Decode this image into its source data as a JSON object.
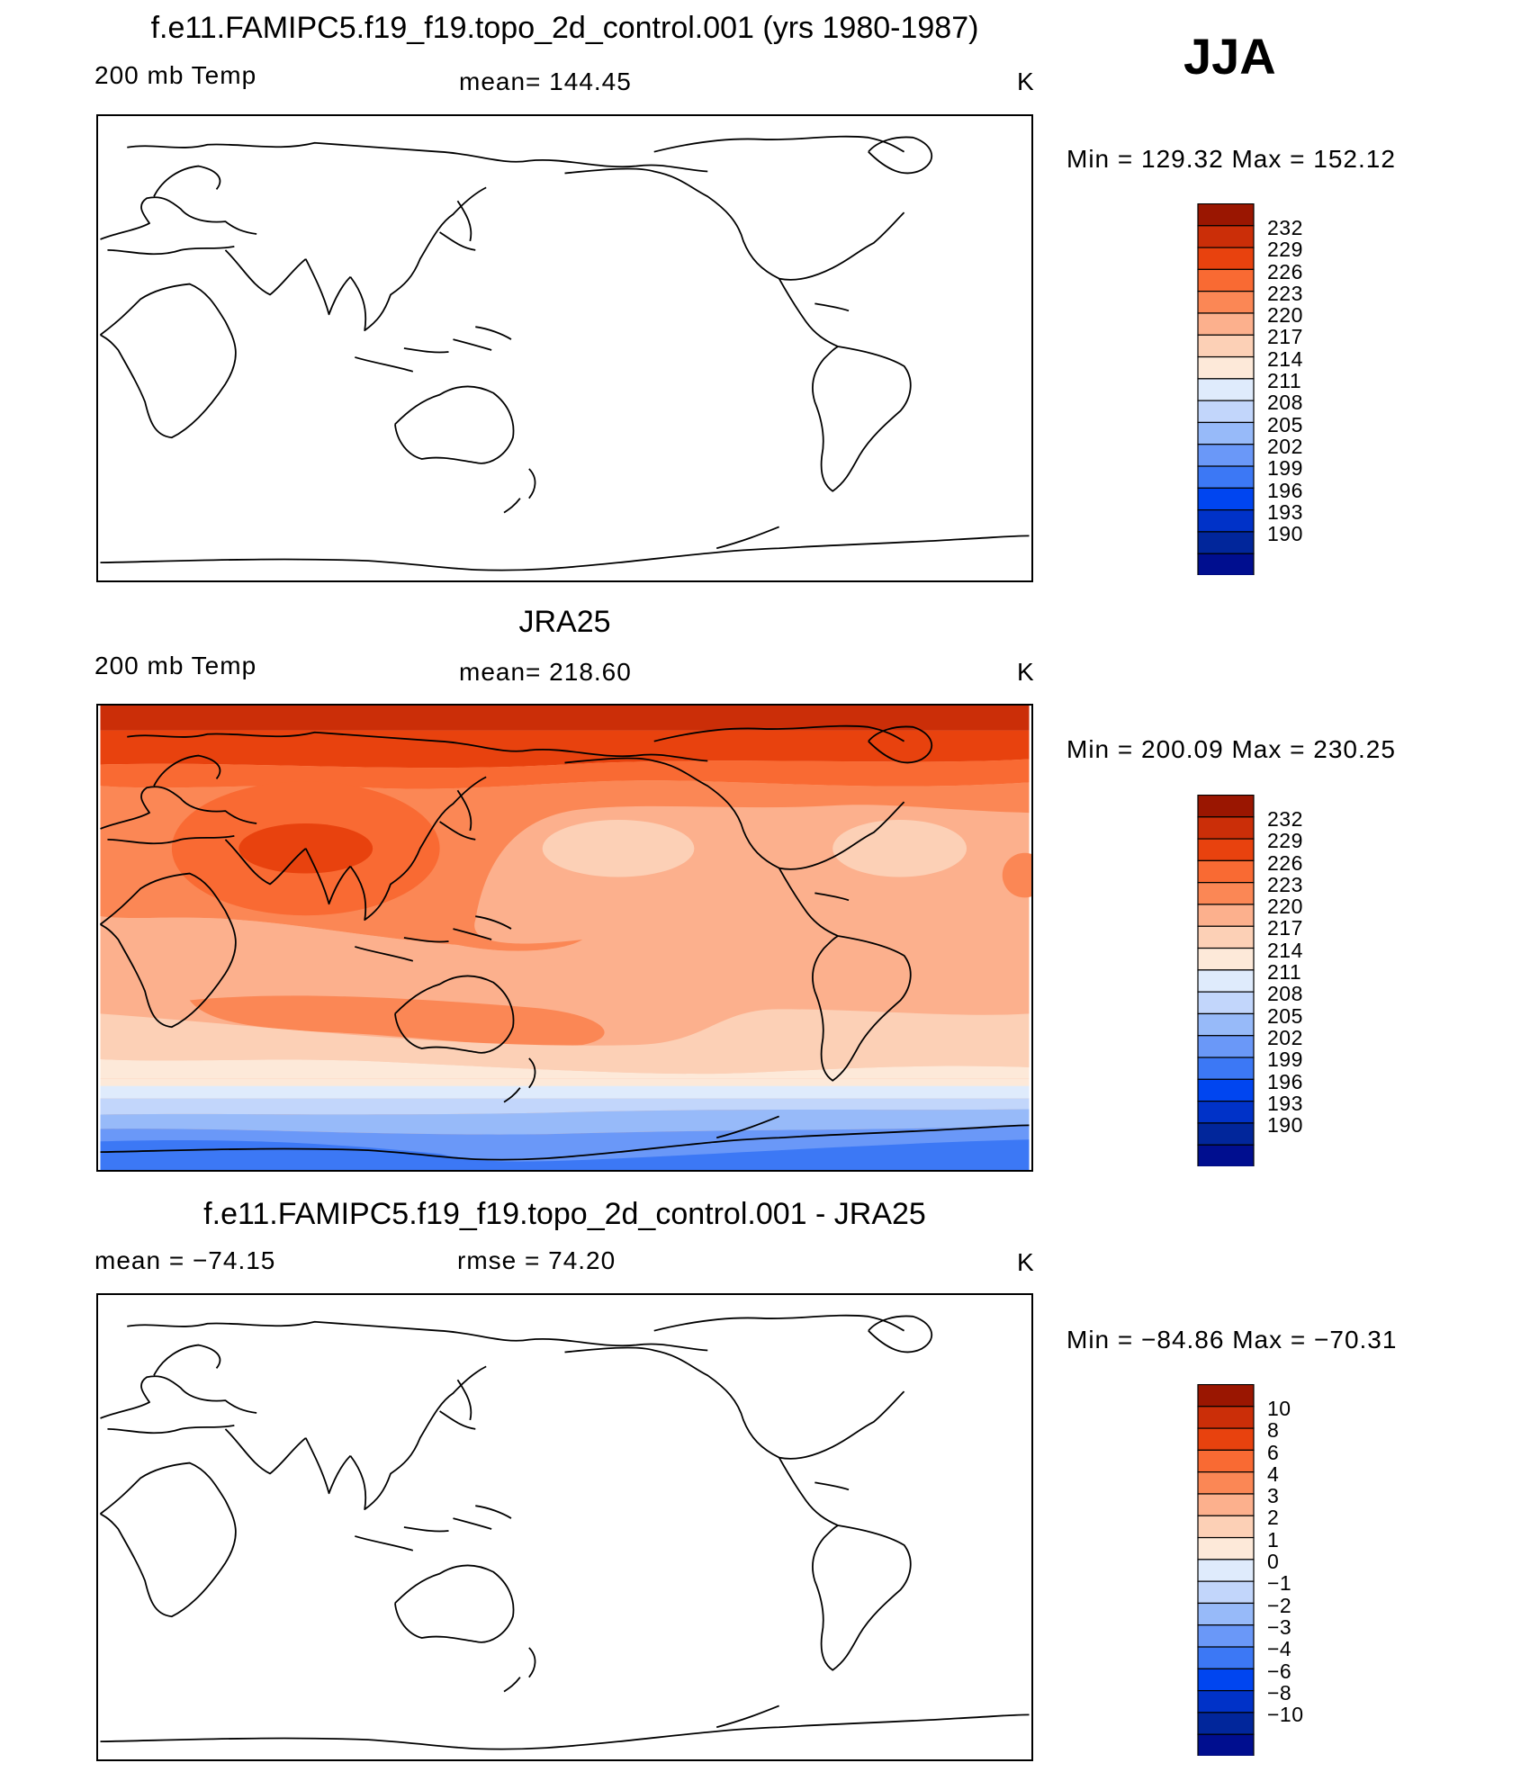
{
  "season": "JJA",
  "colors": {
    "temp_levels": [
      "#000e8f",
      "#01269b",
      "#0032c8",
      "#0045f0",
      "#3c78f5",
      "#6a98f8",
      "#97baf9",
      "#c2d6fb",
      "#dfebfc",
      "#fde9d9",
      "#fcd0b6",
      "#fcb08d",
      "#fb8755",
      "#f96a33",
      "#e8420e",
      "#cb2e08",
      "#9a1601"
    ]
  },
  "chart_data": [
    {
      "type": "heatmap",
      "title": "f.e11.FAMIPC5.f19_f19.topo_2d_control.001 (yrs 1980-1987)",
      "variable": "200 mb Temp",
      "mean_text": "mean=  144.45",
      "units": "K",
      "minmax_text": "Min  =  129.32  Max  =  152.12",
      "min": 129.32,
      "max": 152.12,
      "colorbar_ticks": [
        "232",
        "229",
        "226",
        "223",
        "220",
        "217",
        "214",
        "211",
        "208",
        "205",
        "202",
        "199",
        "196",
        "193",
        "190"
      ],
      "filled": false
    },
    {
      "type": "heatmap",
      "title": "JRA25",
      "variable": "200 mb Temp",
      "mean_text": "mean=  218.60",
      "units": "K",
      "minmax_text": "Min  =  200.09  Max  =  230.25",
      "min": 200.09,
      "max": 230.25,
      "colorbar_ticks": [
        "232",
        "229",
        "226",
        "223",
        "220",
        "217",
        "214",
        "211",
        "208",
        "205",
        "202",
        "199",
        "196",
        "193",
        "190"
      ],
      "filled": true
    },
    {
      "type": "heatmap",
      "title": "f.e11.FAMIPC5.f19_f19.topo_2d_control.001 - JRA25",
      "variable": "mean  =  −74.15",
      "mean_text": "rmse  =    74.20",
      "units": "K",
      "minmax_text": "Min  =  −84.86  Max  =  −70.31",
      "min": -84.86,
      "max": -70.31,
      "colorbar_ticks": [
        "10",
        "8",
        "6",
        "4",
        "3",
        "2",
        "1",
        "0",
        "−1",
        "−2",
        "−3",
        "−4",
        "−6",
        "−8",
        "−10"
      ],
      "filled": false
    }
  ]
}
